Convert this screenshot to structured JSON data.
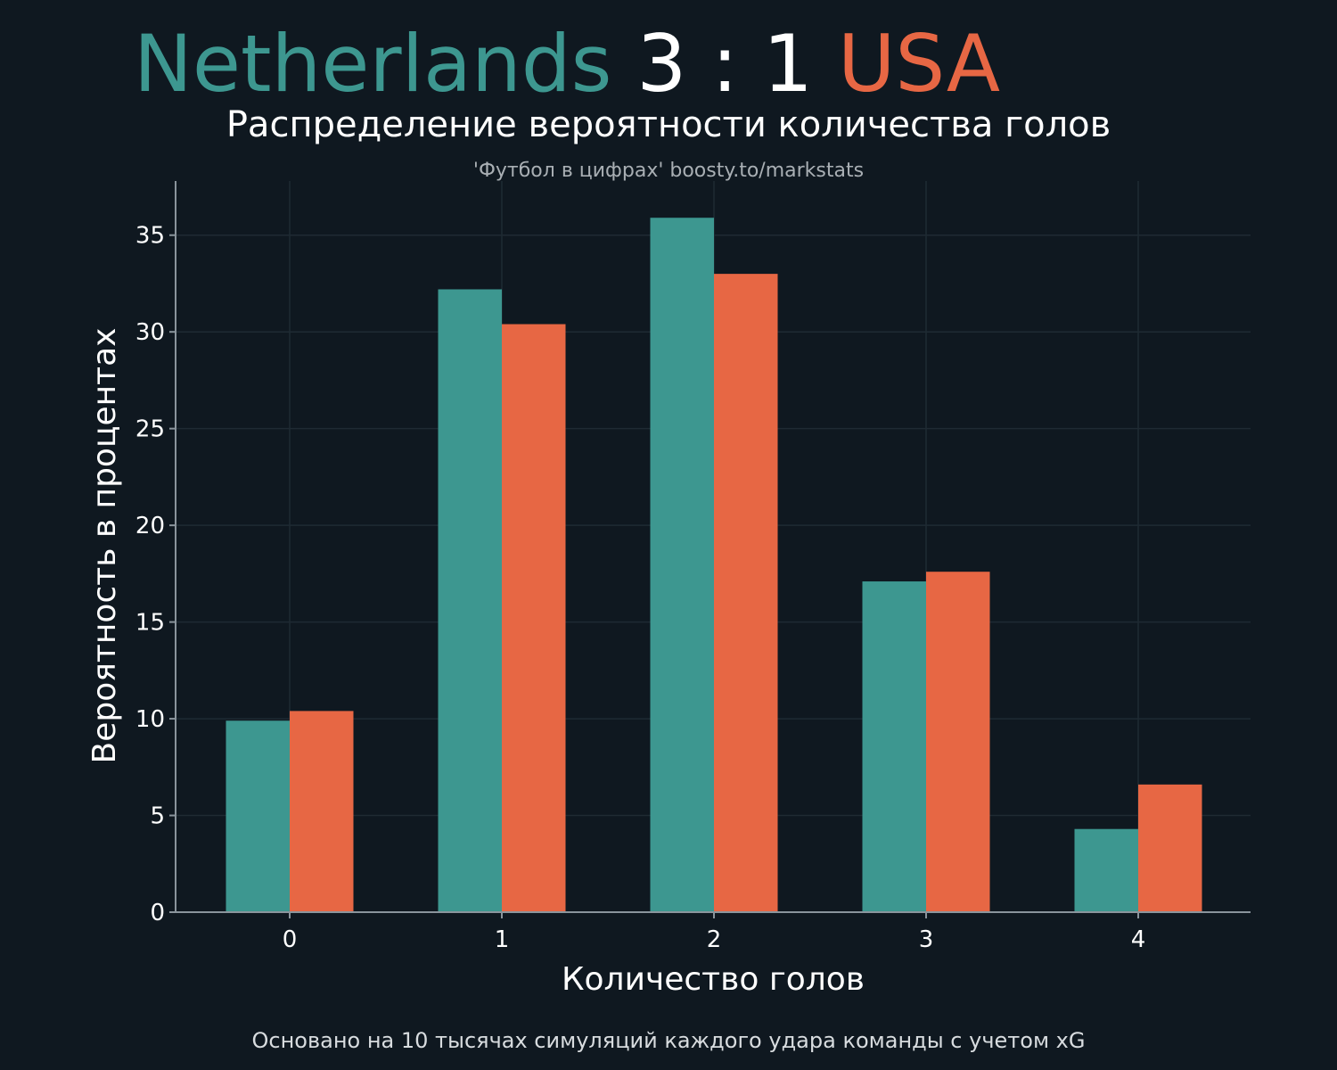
{
  "header": {
    "home_team": "Netherlands",
    "score": " 3 : 1 ",
    "away_team": "USA",
    "subtitle": "Распределение вероятности количества голов",
    "credit": "'Футбол в цифрах' boosty.to/markstats"
  },
  "footer": {
    "note": "Основано на 10 тысячах симуляций каждого удара команды с учетом xG"
  },
  "colors": {
    "background": "#0f1820",
    "home": "#3d9790",
    "away": "#e76744",
    "grid": "#1f2a33",
    "axis": "#8a949c",
    "text": "#ffffff"
  },
  "chart_data": {
    "type": "bar",
    "xlabel": "Количество голов",
    "ylabel": "Вероятность в процентах",
    "categories": [
      "0",
      "1",
      "2",
      "3",
      "4"
    ],
    "series": [
      {
        "name": "Netherlands",
        "color": "#3d9790",
        "values": [
          9.9,
          32.2,
          35.9,
          17.1,
          4.3
        ]
      },
      {
        "name": "USA",
        "color": "#e76744",
        "values": [
          10.4,
          30.4,
          33.0,
          17.6,
          6.6
        ]
      }
    ],
    "yticks": [
      0,
      5,
      10,
      15,
      20,
      25,
      30,
      35
    ],
    "ylim": [
      0,
      37.8
    ],
    "grid": true,
    "legend": "none"
  }
}
